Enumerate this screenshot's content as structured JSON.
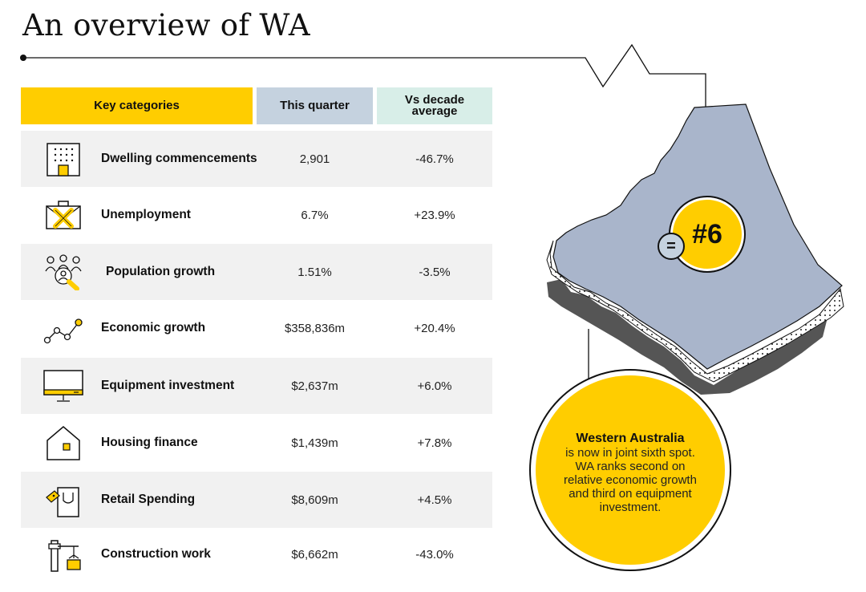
{
  "title": "An overview of WA",
  "table": {
    "headers": {
      "category": "Key categories",
      "quarter": "This quarter",
      "decade": "Vs decade\naverage"
    },
    "rows": [
      {
        "name": "Dwelling commencements",
        "value": "2,901",
        "vs_decade": "-46.7%",
        "icon": "building-icon"
      },
      {
        "name": "Unemployment",
        "value": "6.7%",
        "vs_decade": "+23.9%",
        "icon": "briefcase-cross-icon"
      },
      {
        "name": "Population growth",
        "value": "1.51%",
        "vs_decade": "-3.5%",
        "icon": "people-search-icon"
      },
      {
        "name": "Economic growth",
        "value": "$358,836m",
        "vs_decade": "+20.4%",
        "icon": "line-graph-icon"
      },
      {
        "name": "Equipment investment",
        "value": "$2,637m",
        "vs_decade": "+6.0%",
        "icon": "monitor-icon"
      },
      {
        "name": "Housing finance",
        "value": "$1,439m",
        "vs_decade": "+7.8%",
        "icon": "house-icon"
      },
      {
        "name": "Retail Spending",
        "value": "$8,609m",
        "vs_decade": "+4.5%",
        "icon": "shopping-bag-icon"
      },
      {
        "name": "Construction work",
        "value": "$6,662m",
        "vs_decade": "-43.0%",
        "icon": "crane-icon"
      }
    ]
  },
  "rank": {
    "equal_sign": "=",
    "label": "#6"
  },
  "info": {
    "title": "Western Australia",
    "body": "is now in joint sixth spot. WA ranks second on relative economic growth and third on equipment investment."
  },
  "colors": {
    "accent_yellow": "#ffcd00",
    "map_blue": "#a9b5cb",
    "header_blue": "#c5d2df",
    "header_mint": "#d8eee8",
    "row_shade": "#f1f1f1"
  }
}
